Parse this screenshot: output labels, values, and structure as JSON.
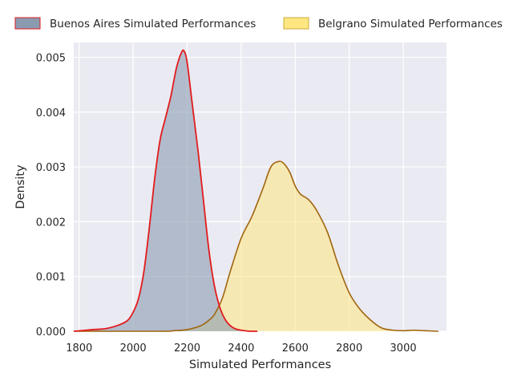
{
  "chart_data": {
    "type": "area",
    "xlabel": "Simulated Performances",
    "ylabel": "Density",
    "xlim": [
      1780,
      3160
    ],
    "ylim": [
      0,
      0.00527
    ],
    "xticks": [
      1800,
      2000,
      2200,
      2400,
      2600,
      2800,
      3000
    ],
    "xtick_labels": [
      "1800",
      "2000",
      "2200",
      "2400",
      "2600",
      "2800",
      "3000"
    ],
    "yticks": [
      0,
      0.001,
      0.002,
      0.003,
      0.004,
      0.005
    ],
    "ytick_labels": [
      "0.000",
      "0.001",
      "0.002",
      "0.003",
      "0.004",
      "0.005"
    ],
    "grid": true,
    "legend_position": "top",
    "series": [
      {
        "name": "Buenos Aires Simulated Performances",
        "fill_color": "#8a9bb0",
        "line_color": "#e31a1c",
        "x": [
          1780,
          1850,
          1900,
          1950,
          1980,
          2000,
          2020,
          2040,
          2060,
          2080,
          2100,
          2120,
          2140,
          2160,
          2180,
          2190,
          2200,
          2220,
          2240,
          2260,
          2280,
          2300,
          2320,
          2340,
          2360,
          2380,
          2400,
          2420,
          2440,
          2460
        ],
        "y": [
          0,
          3e-05,
          5e-05,
          0.00012,
          0.0002,
          0.00035,
          0.0006,
          0.0011,
          0.0019,
          0.0028,
          0.0035,
          0.0039,
          0.0043,
          0.0048,
          0.0051,
          0.0051,
          0.0049,
          0.0041,
          0.0033,
          0.0024,
          0.0015,
          0.00085,
          0.00045,
          0.00022,
          0.0001,
          4e-05,
          2e-05,
          5e-06,
          0,
          0
        ]
      },
      {
        "name": "Belgrano Simulated Performances",
        "fill_color": "#ffe680",
        "line_color": "#a0650e",
        "x": [
          1780,
          2100,
          2150,
          2200,
          2250,
          2280,
          2300,
          2330,
          2360,
          2400,
          2440,
          2480,
          2510,
          2540,
          2560,
          2580,
          2600,
          2620,
          2650,
          2680,
          2720,
          2760,
          2800,
          2840,
          2880,
          2920,
          2960,
          3000,
          3040,
          3080,
          3130
        ],
        "y": [
          0,
          0,
          1e-05,
          3e-05,
          0.0001,
          0.0002,
          0.0003,
          0.0006,
          0.0011,
          0.0017,
          0.0021,
          0.0026,
          0.003,
          0.0031,
          0.00305,
          0.0029,
          0.00265,
          0.0025,
          0.0024,
          0.0022,
          0.0018,
          0.0012,
          0.0007,
          0.0004,
          0.0002,
          6e-05,
          2e-05,
          1e-05,
          2e-05,
          1e-05,
          0
        ]
      }
    ]
  },
  "legend": {
    "items": [
      {
        "label": "Buenos Aires Simulated Performances"
      },
      {
        "label": "Belgrano Simulated Performances"
      }
    ]
  }
}
